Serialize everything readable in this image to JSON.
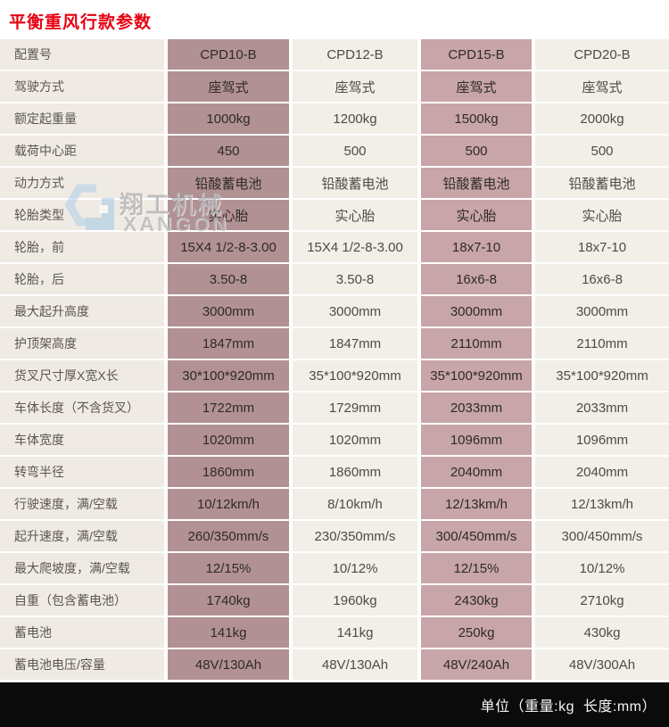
{
  "title": "平衡重风行款参数",
  "watermark": {
    "logo_icon": "xangon-hexagon-logo",
    "name_cn": "翔工机械",
    "name_en": "XANGON"
  },
  "footer": {
    "units_note": "单位（重量:kg  长度:mm）"
  },
  "colors": {
    "title_red": "#e60012",
    "label_column_bg": "#efeae4",
    "light_column_bg": "#f2eee8",
    "dark_mauve_column_bg": "#b29194",
    "light_mauve_column_bg": "#c8a5a8",
    "footer_bg": "#0b0b0b",
    "footer_text": "#f5f5f5",
    "watermark_blue": "#b3d2e8"
  },
  "table": {
    "rows": [
      {
        "label": "配置号",
        "values": [
          "CPD10-B",
          "CPD12-B",
          "CPD15-B",
          "CPD20-B"
        ]
      },
      {
        "label": "驾驶方式",
        "values": [
          "座驾式",
          "座驾式",
          "座驾式",
          "座驾式"
        ]
      },
      {
        "label": "额定起重量",
        "values": [
          "1000kg",
          "1200kg",
          "1500kg",
          "2000kg"
        ]
      },
      {
        "label": "载荷中心距",
        "values": [
          "450",
          "500",
          "500",
          "500"
        ]
      },
      {
        "label": "动力方式",
        "values": [
          "铅酸蓄电池",
          "铅酸蓄电池",
          "铅酸蓄电池",
          "铅酸蓄电池"
        ]
      },
      {
        "label": "轮胎类型",
        "values": [
          "实心胎",
          "实心胎",
          "实心胎",
          "实心胎"
        ]
      },
      {
        "label": "轮胎，前",
        "values": [
          "15X4 1/2-8-3.00",
          "15X4 1/2-8-3.00",
          "18x7-10",
          "18x7-10"
        ]
      },
      {
        "label": "轮胎，后",
        "values": [
          "3.50-8",
          "3.50-8",
          "16x6-8",
          "16x6-8"
        ]
      },
      {
        "label": "最大起升高度",
        "values": [
          "3000mm",
          "3000mm",
          "3000mm",
          "3000mm"
        ]
      },
      {
        "label": "护顶架高度",
        "values": [
          "1847mm",
          "1847mm",
          "2110mm",
          "2110mm"
        ]
      },
      {
        "label": "货叉尺寸厚X宽X长",
        "values": [
          "30*100*920mm",
          "35*100*920mm",
          "35*100*920mm",
          "35*100*920mm"
        ]
      },
      {
        "label": "车体长度（不含货叉）",
        "values": [
          "1722mm",
          "1729mm",
          "2033mm",
          "2033mm"
        ]
      },
      {
        "label": "车体宽度",
        "values": [
          "1020mm",
          "1020mm",
          "1096mm",
          "1096mm"
        ]
      },
      {
        "label": "转弯半径",
        "values": [
          "1860mm",
          "1860mm",
          "2040mm",
          "2040mm"
        ]
      },
      {
        "label": "行驶速度，满/空载",
        "values": [
          "10/12km/h",
          "8/10km/h",
          "12/13km/h",
          "12/13km/h"
        ]
      },
      {
        "label": "起升速度，满/空载",
        "values": [
          "260/350mm/s",
          "230/350mm/s",
          "300/450mm/s",
          "300/450mm/s"
        ]
      },
      {
        "label": "最大爬坡度，满/空载",
        "values": [
          "12/15%",
          "10/12%",
          "12/15%",
          "10/12%"
        ]
      },
      {
        "label": "自重（包含蓄电池）",
        "values": [
          "1740kg",
          "1960kg",
          "2430kg",
          "2710kg"
        ]
      },
      {
        "label": "蓄电池",
        "values": [
          "141kg",
          "141kg",
          "250kg",
          "430kg"
        ]
      },
      {
        "label": "蓄电池电压/容量",
        "values": [
          "48V/130Ah",
          "48V/130Ah",
          "48V/240Ah",
          "48V/300Ah"
        ]
      }
    ]
  }
}
